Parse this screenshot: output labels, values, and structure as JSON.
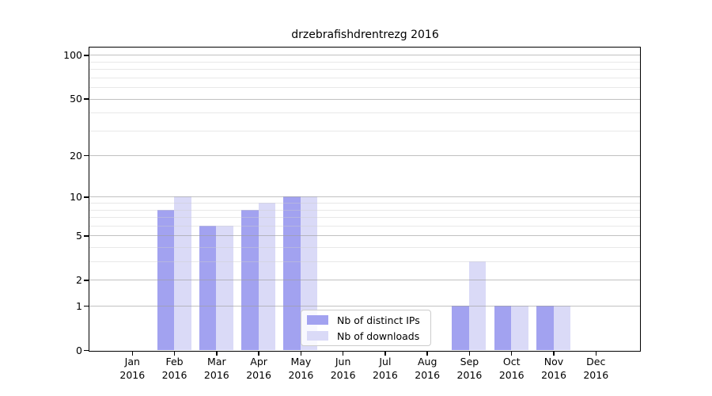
{
  "title": "drzebrafishdrentrezg 2016",
  "chart_data": {
    "type": "bar",
    "title": "drzebrafishdrentrezg 2016",
    "categories": [
      "Jan",
      "Feb",
      "Mar",
      "Apr",
      "May",
      "Jun",
      "Jul",
      "Aug",
      "Sep",
      "Oct",
      "Nov",
      "Dec"
    ],
    "x_year": "2016",
    "series": [
      {
        "name": "Nb of distinct IPs",
        "color": "#a2a2f0",
        "values": [
          0,
          8,
          6,
          8,
          10,
          0,
          0,
          0,
          1,
          1,
          1,
          0
        ]
      },
      {
        "name": "Nb of downloads",
        "color": "#dadaf7",
        "values": [
          0,
          10,
          6,
          9,
          10,
          0,
          0,
          0,
          3,
          1,
          1,
          0
        ]
      }
    ],
    "y_scale": "log1p",
    "ylim": [
      0,
      115
    ],
    "y_ticks": [
      100,
      50,
      20,
      10,
      5,
      2,
      1,
      0
    ],
    "y_minor_gridlines": [
      3,
      4,
      6,
      7,
      8,
      9,
      30,
      40,
      60,
      70,
      80,
      90
    ],
    "grid": true,
    "legend_position": "bottom-center"
  },
  "legend": {
    "items": [
      {
        "label": "Nb of distinct IPs",
        "color": "#a2a2f0"
      },
      {
        "label": "Nb of downloads",
        "color": "#dadaf7"
      }
    ]
  }
}
